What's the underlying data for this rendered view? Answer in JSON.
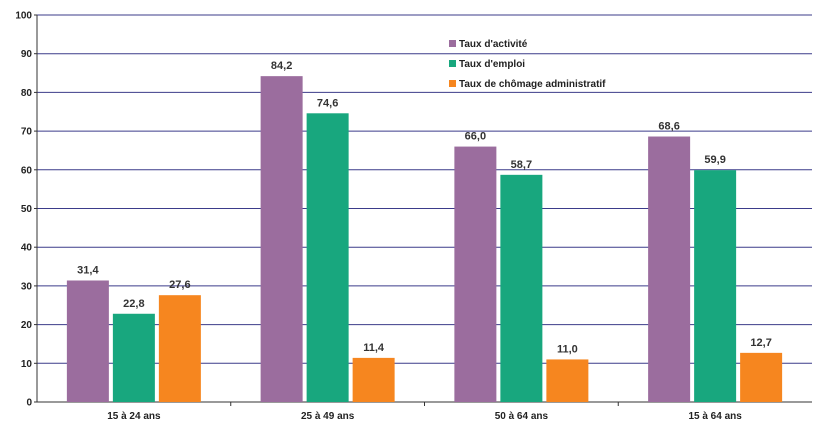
{
  "chart_data": {
    "type": "bar",
    "categories": [
      "15 à 24 ans",
      "25 à 49 ans",
      "50 à 64 ans",
      "15 à 64 ans"
    ],
    "series": [
      {
        "name": "Taux d'activité",
        "values": [
          31.4,
          84.2,
          66.0,
          68.6
        ],
        "labels": [
          "31,4",
          "84,2",
          "66,0",
          "68,6"
        ],
        "color": "#9b6d9e"
      },
      {
        "name": "Taux d'emploi",
        "values": [
          22.8,
          74.6,
          58.7,
          59.9
        ],
        "labels": [
          "22,8",
          "74,6",
          "58,7",
          "59,9"
        ],
        "color": "#18a77e"
      },
      {
        "name": "Taux de chômage administratif",
        "values": [
          27.6,
          11.4,
          11.0,
          12.7
        ],
        "labels": [
          "27,6",
          "11,4",
          "11,0",
          "12,7"
        ],
        "color": "#f6861f"
      }
    ],
    "ylim": [
      0,
      100
    ],
    "yticks": [
      0,
      10,
      20,
      30,
      40,
      50,
      60,
      70,
      80,
      90,
      100
    ],
    "grid": true,
    "legend_position": "top-right",
    "gridline_color": "#3b3b8a"
  }
}
